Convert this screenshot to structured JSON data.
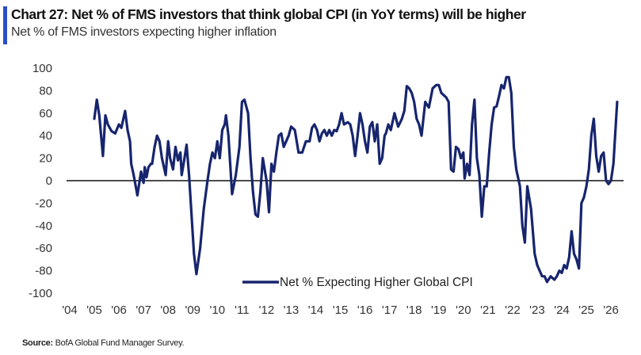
{
  "header": {
    "title": "Chart 27: Net % of FMS investors that think global CPI (in YoY terms) will be higher",
    "subtitle": "Net % of FMS investors expecting higher inflation",
    "accent_color": "#2a4fc4"
  },
  "footer": {
    "source_label": "Source:",
    "source_text": "BofA Global Fund Manager Survey."
  },
  "chart_data": {
    "type": "line",
    "title": "Chart 27: Net % of FMS investors that think global CPI (in YoY terms) will be higher",
    "subtitle": "Net % of FMS investors expecting higher inflation",
    "xlabel": "",
    "ylabel": "",
    "ylim": [
      -100,
      100
    ],
    "xlim": [
      2004,
      2026.3
    ],
    "yticks": [
      100,
      80,
      60,
      40,
      20,
      0,
      -20,
      -40,
      -60,
      -80,
      -100
    ],
    "xtick_labels": [
      "'04",
      "'05",
      "'06",
      "'07",
      "'08",
      "'09",
      "'10",
      "'11",
      "'12",
      "'13",
      "'14",
      "'15",
      "'16",
      "'17",
      "'18",
      "'19",
      "'20",
      "'21",
      "'22",
      "'23",
      "'24",
      "'25",
      "'26"
    ],
    "xtick_years": [
      2004,
      2005,
      2006,
      2007,
      2008,
      2009,
      2010,
      2011,
      2012,
      2013,
      2014,
      2015,
      2016,
      2017,
      2018,
      2019,
      2020,
      2021,
      2022,
      2023,
      2024,
      2025,
      2026
    ],
    "grid": false,
    "zero_line": true,
    "legend_position": "bottom-center",
    "series": [
      {
        "name": "Net % Expecting Higher Global CPI",
        "color": "#17256e",
        "x": [
          2005.0,
          2005.1,
          2005.2,
          2005.35,
          2005.45,
          2005.55,
          2005.7,
          2005.85,
          2006.0,
          2006.1,
          2006.25,
          2006.35,
          2006.45,
          2006.5,
          2006.6,
          2006.75,
          2006.9,
          2007.0,
          2007.05,
          2007.12,
          2007.2,
          2007.3,
          2007.35,
          2007.45,
          2007.55,
          2007.65,
          2007.75,
          2007.9,
          2008.0,
          2008.08,
          2008.2,
          2008.3,
          2008.4,
          2008.5,
          2008.55,
          2008.65,
          2008.75,
          2008.85,
          2008.95,
          2009.05,
          2009.15,
          2009.3,
          2009.45,
          2009.6,
          2009.7,
          2009.8,
          2009.9,
          2010.0,
          2010.1,
          2010.2,
          2010.3,
          2010.35,
          2010.45,
          2010.6,
          2010.75,
          2010.9,
          2011.0,
          2011.1,
          2011.25,
          2011.35,
          2011.45,
          2011.55,
          2011.65,
          2011.75,
          2011.85,
          2012.0,
          2012.1,
          2012.2,
          2012.3,
          2012.4,
          2012.5,
          2012.6,
          2012.7,
          2012.8,
          2012.9,
          2013.0,
          2013.15,
          2013.3,
          2013.45,
          2013.6,
          2013.75,
          2013.85,
          2013.95,
          2014.05,
          2014.15,
          2014.25,
          2014.35,
          2014.45,
          2014.55,
          2014.65,
          2014.75,
          2014.85,
          2014.95,
          2015.05,
          2015.15,
          2015.3,
          2015.4,
          2015.5,
          2015.6,
          2015.7,
          2015.8,
          2015.9,
          2016.0,
          2016.1,
          2016.2,
          2016.3,
          2016.4,
          2016.5,
          2016.6,
          2016.7,
          2016.8,
          2016.85,
          2016.95,
          2017.05,
          2017.2,
          2017.35,
          2017.5,
          2017.6,
          2017.7,
          2017.8,
          2017.9,
          2018.0,
          2018.1,
          2018.2,
          2018.3,
          2018.45,
          2018.6,
          2018.75,
          2018.9,
          2019.0,
          2019.1,
          2019.2,
          2019.3,
          2019.4,
          2019.5,
          2019.6,
          2019.7,
          2019.8,
          2019.9,
          2020.0,
          2020.05,
          2020.15,
          2020.25,
          2020.35,
          2020.45,
          2020.55,
          2020.65,
          2020.75,
          2020.85,
          2020.95,
          2021.05,
          2021.15,
          2021.25,
          2021.35,
          2021.45,
          2021.55,
          2021.65,
          2021.75,
          2021.85,
          2021.95,
          2022.05,
          2022.15,
          2022.25,
          2022.3,
          2022.4,
          2022.5,
          2022.6,
          2022.75,
          2022.9,
          2023.0,
          2023.1,
          2023.2,
          2023.3,
          2023.4,
          2023.55,
          2023.7,
          2023.8,
          2023.9,
          2024.0,
          2024.1,
          2024.2,
          2024.3,
          2024.4,
          2024.5,
          2024.6,
          2024.7,
          2024.8,
          2024.9,
          2025.0,
          2025.1,
          2025.2,
          2025.3,
          2025.4,
          2025.5,
          2025.6,
          2025.7,
          2025.8,
          2025.9,
          2026.0,
          2026.1,
          2026.25
        ],
        "y": [
          55,
          72,
          58,
          22,
          58,
          50,
          44,
          42,
          50,
          47,
          62,
          45,
          35,
          15,
          5,
          -13,
          8,
          -2,
          12,
          3,
          12,
          15,
          15,
          30,
          40,
          35,
          20,
          5,
          35,
          20,
          10,
          30,
          18,
          25,
          5,
          18,
          32,
          5,
          -30,
          -65,
          -83,
          -60,
          -25,
          0,
          15,
          25,
          20,
          35,
          20,
          45,
          50,
          58,
          40,
          -12,
          5,
          30,
          70,
          72,
          60,
          20,
          -10,
          -30,
          -32,
          -10,
          20,
          0,
          -28,
          15,
          8,
          25,
          40,
          42,
          30,
          35,
          40,
          48,
          45,
          25,
          25,
          35,
          35,
          47,
          50,
          45,
          35,
          42,
          45,
          40,
          45,
          40,
          45,
          44,
          50,
          60,
          50,
          52,
          50,
          40,
          22,
          40,
          60,
          50,
          35,
          25,
          48,
          52,
          35,
          50,
          15,
          20,
          40,
          42,
          50,
          45,
          60,
          48,
          55,
          62,
          84,
          82,
          78,
          70,
          55,
          50,
          40,
          70,
          65,
          82,
          85,
          85,
          78,
          76,
          74,
          70,
          10,
          8,
          30,
          28,
          20,
          25,
          2,
          15,
          5,
          50,
          72,
          20,
          5,
          -32,
          -5,
          -5,
          25,
          50,
          65,
          66,
          75,
          85,
          82,
          92,
          92,
          78,
          30,
          10,
          0,
          -5,
          -40,
          -55,
          -5,
          -25,
          -65,
          -75,
          -80,
          -85,
          -85,
          -90,
          -85,
          -88,
          -85,
          -80,
          -82,
          -75,
          -78,
          -68,
          -45,
          -65,
          -70,
          -78,
          -20,
          -15,
          -5,
          10,
          40,
          55,
          22,
          8,
          22,
          25,
          0,
          -3,
          0,
          15,
          70
        ]
      }
    ]
  },
  "legend": {
    "label": "Net % Expecting Higher Global CPI"
  }
}
